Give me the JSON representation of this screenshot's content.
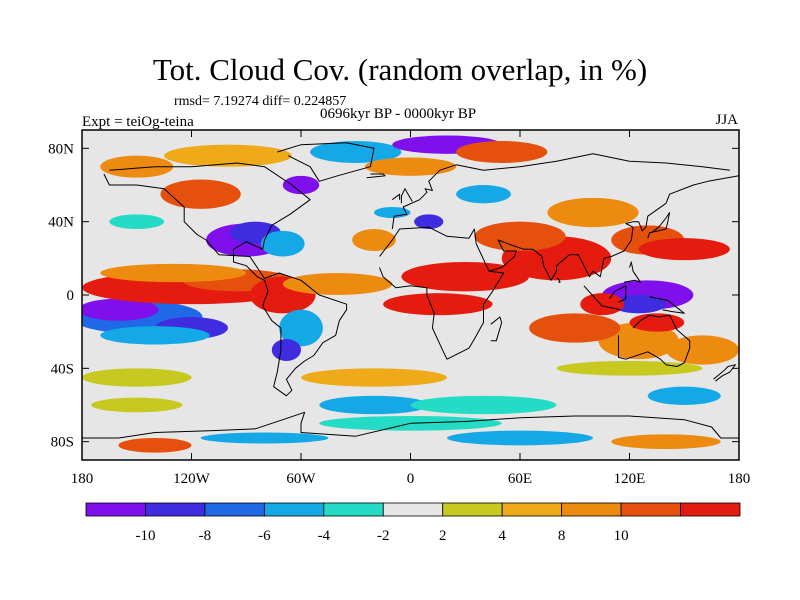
{
  "title": "Tot. Cloud Cov. (random overlap, in %)",
  "stats": "rmsd= 7.19274 diff= 0.224857",
  "experiment": "Expt = teiOg-teina",
  "period": "0696kyr BP - 0000kyr BP",
  "season": "JJA",
  "map": {
    "projection": "cylindrical equidistant",
    "lon_range": [
      -180,
      180
    ],
    "lat_range": [
      -90,
      90
    ],
    "field_description": "colour-filled anomaly contours with coastlines",
    "lon_ticks": [
      "180",
      "120W",
      "60W",
      "0",
      "60E",
      "120E",
      "180"
    ],
    "lat_ticks": [
      "80N",
      "40N",
      "0",
      "40S",
      "80S"
    ],
    "coastline_color": "#000000"
  },
  "legend": {
    "labels": [
      "-10",
      "-8",
      "-6",
      "-4",
      "-2",
      "2",
      "4",
      "8",
      "10"
    ],
    "levels": [
      -10,
      -8,
      -6,
      -4,
      -2,
      2,
      4,
      8,
      10
    ],
    "colors": [
      "#7f10ec",
      "#3f2be0",
      "#1f68e6",
      "#14a9e6",
      "#24dcc5",
      "#e6e6e6",
      "#c7c920",
      "#eeaa18",
      "#ed8a10",
      "#e5500c",
      "#e61b10"
    ]
  }
}
